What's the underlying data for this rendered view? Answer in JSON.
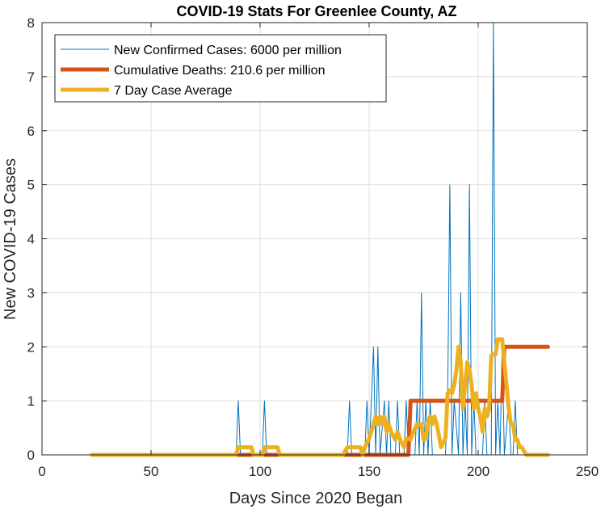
{
  "chart_data": {
    "type": "line",
    "title": "COVID-19 Stats For Greenlee County, AZ",
    "xlabel": "Days Since 2020 Began",
    "ylabel": "New COVID-19 Cases",
    "xlim": [
      0,
      250
    ],
    "ylim": [
      0,
      8
    ],
    "xticks": [
      "0",
      "50",
      "100",
      "150",
      "200",
      "250"
    ],
    "yticks": [
      "0",
      "1",
      "2",
      "3",
      "4",
      "5",
      "6",
      "7",
      "8"
    ],
    "grid": true,
    "legend_position": "top-left",
    "series": [
      {
        "name": "New Confirmed Cases: 6000 per million",
        "color": "#0072BD",
        "style": "thin",
        "x": [
          23,
          89,
          90,
          91,
          101,
          102,
          103,
          140,
          141,
          142,
          148,
          149,
          150,
          152,
          153,
          154,
          155,
          157,
          158,
          159,
          160,
          162,
          163,
          164,
          166,
          167,
          168,
          169,
          171,
          172,
          173,
          174,
          175,
          176,
          177,
          178,
          179,
          180,
          183,
          185,
          186,
          187,
          188,
          189,
          191,
          192,
          193,
          194,
          195,
          196,
          197,
          198,
          199,
          200,
          202,
          203,
          204,
          206,
          207,
          208,
          209,
          210,
          211,
          212,
          214,
          215,
          216,
          217,
          218,
          222,
          232
        ],
        "y": [
          0,
          0,
          1,
          0,
          0,
          1,
          0,
          0,
          1,
          0,
          0,
          1,
          0,
          2,
          0,
          2,
          0,
          1,
          0,
          1,
          0,
          0,
          1,
          0,
          0,
          1,
          0,
          0,
          0,
          1,
          0,
          3,
          0,
          1,
          0,
          1,
          0,
          0,
          0,
          0,
          1,
          5,
          0,
          1,
          0,
          3,
          0,
          1,
          0,
          5,
          0,
          1,
          0,
          0,
          0,
          1,
          0,
          0,
          8,
          0,
          1,
          0,
          2,
          0,
          1,
          0,
          0,
          1,
          0,
          0,
          0
        ]
      },
      {
        "name": "Cumulative Deaths: 210.6 per million",
        "color": "#D95319",
        "style": "thick",
        "x": [
          23,
          168,
          169,
          211,
          212,
          232
        ],
        "y": [
          0,
          0,
          1,
          1,
          2,
          2
        ]
      },
      {
        "name": "7 Day Case Average",
        "color": "#EDB120",
        "style": "thick",
        "x": [
          23,
          89,
          90,
          96,
          97,
          101,
          102,
          108,
          109,
          138,
          140,
          146,
          147,
          148,
          150,
          152,
          153,
          154,
          155,
          156,
          157,
          158,
          159,
          160,
          162,
          163,
          164,
          166,
          167,
          168,
          169,
          170,
          172,
          174,
          175,
          176,
          177,
          178,
          179,
          180,
          181,
          183,
          185,
          186,
          187,
          188,
          189,
          190,
          191,
          192,
          193,
          194,
          195,
          196,
          197,
          198,
          199,
          200,
          201,
          202,
          203,
          204,
          205,
          206,
          207,
          208,
          209,
          210,
          211,
          212,
          213,
          214,
          215,
          216,
          217,
          218,
          219,
          220,
          222,
          224,
          232
        ],
        "y": [
          0,
          0,
          0.14,
          0.14,
          0,
          0,
          0.14,
          0.14,
          0,
          0,
          0.14,
          0.14,
          0,
          0.14,
          0.3,
          0.57,
          0.71,
          0.57,
          0.71,
          0.57,
          0.71,
          0.43,
          0.57,
          0.43,
          0.28,
          0.43,
          0.3,
          0.14,
          0.3,
          0.3,
          0.28,
          0.4,
          0.57,
          0.57,
          0.28,
          0.3,
          0.57,
          0.71,
          0.57,
          0.71,
          0.57,
          0.14,
          0.3,
          1.14,
          1.2,
          1.14,
          1.29,
          1.57,
          2.0,
          1.71,
          0.86,
          1.29,
          1.71,
          1.57,
          1.29,
          0.86,
          1.14,
          0.86,
          0.71,
          0.43,
          0.86,
          0.71,
          0.85,
          1.84,
          1.86,
          1.86,
          2.14,
          2.14,
          2.14,
          1.71,
          1.29,
          0.86,
          0.57,
          0.57,
          0.28,
          0.28,
          0.14,
          0.14,
          0,
          0,
          0
        ]
      }
    ]
  }
}
